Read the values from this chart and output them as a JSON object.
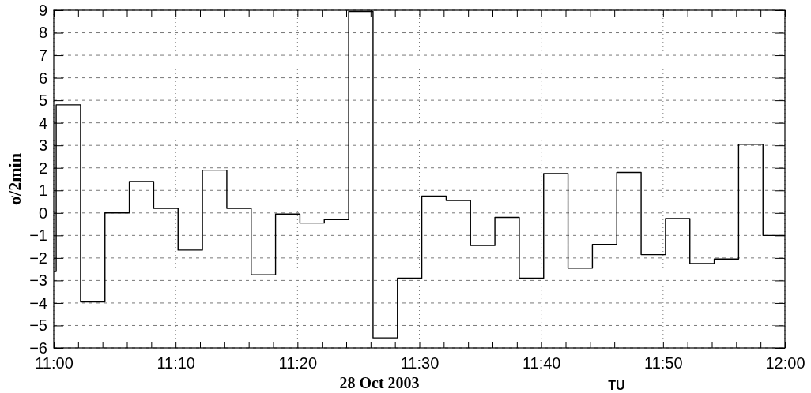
{
  "chart_data": {
    "type": "step",
    "xlabel": "28 Oct 2003",
    "ylabel": "σ/2min",
    "annotations": [
      "TU"
    ],
    "x": [
      11,
      11.00333,
      11.03667,
      11.07,
      11.10333,
      11.13667,
      11.17,
      11.20333,
      11.23667,
      11.27,
      11.30333,
      11.33667,
      11.37,
      11.40333,
      11.43667,
      11.47,
      11.50333,
      11.53667,
      11.57,
      11.60333,
      11.63667,
      11.67,
      11.70333,
      11.73667,
      11.77,
      11.80333,
      11.83667,
      11.87,
      11.90333,
      11.93667,
      11.97,
      12
    ],
    "series": [
      {
        "color": "#000000",
        "values": [
          -2.6,
          4.8,
          -3.95,
          0,
          1.4,
          0.2,
          -1.65,
          1.9,
          0.2,
          -2.75,
          -0.05,
          -0.45,
          -0.3,
          8.95,
          -5.55,
          -2.9,
          0.75,
          0.55,
          -1.45,
          -0.2,
          -2.9,
          1.75,
          -2.45,
          -1.4,
          1.8,
          -1.85,
          -0.25,
          -2.25,
          -2.05,
          3.05,
          -1,
          -1
        ]
      }
    ],
    "xlim": [
      11,
      12
    ],
    "xticks": [
      {
        "value": 11,
        "label": "11:00"
      },
      {
        "value": 11.03333,
        "label": null
      },
      {
        "value": 11.06667,
        "label": null
      },
      {
        "value": 11.1,
        "label": null
      },
      {
        "value": 11.13333,
        "label": null
      },
      {
        "value": 11.16667,
        "label": "11:10"
      },
      {
        "value": 11.2,
        "label": null
      },
      {
        "value": 11.23333,
        "label": null
      },
      {
        "value": 11.26667,
        "label": null
      },
      {
        "value": 11.3,
        "label": null
      },
      {
        "value": 11.33333,
        "label": "11:20"
      },
      {
        "value": 11.36667,
        "label": null
      },
      {
        "value": 11.4,
        "label": null
      },
      {
        "value": 11.43333,
        "label": null
      },
      {
        "value": 11.46667,
        "label": null
      },
      {
        "value": 11.5,
        "label": "11:30"
      },
      {
        "value": 11.53333,
        "label": null
      },
      {
        "value": 11.56667,
        "label": null
      },
      {
        "value": 11.6,
        "label": null
      },
      {
        "value": 11.63333,
        "label": null
      },
      {
        "value": 11.66667,
        "label": "11:40"
      },
      {
        "value": 11.7,
        "label": null
      },
      {
        "value": 11.73333,
        "label": null
      },
      {
        "value": 11.76667,
        "label": null
      },
      {
        "value": 11.8,
        "label": null
      },
      {
        "value": 11.83333,
        "label": "11:50"
      },
      {
        "value": 11.86667,
        "label": null
      },
      {
        "value": 11.9,
        "label": null
      },
      {
        "value": 11.93333,
        "label": null
      },
      {
        "value": 11.96667,
        "label": null
      },
      {
        "value": 12,
        "label": "12:00"
      }
    ],
    "ylim": [
      -6,
      9
    ],
    "yticks": [
      -6,
      -5,
      -4,
      -3,
      -2,
      -1,
      0,
      1,
      2,
      3,
      4,
      5,
      6,
      7,
      8,
      9
    ],
    "grid": true,
    "line_style": "solid"
  }
}
